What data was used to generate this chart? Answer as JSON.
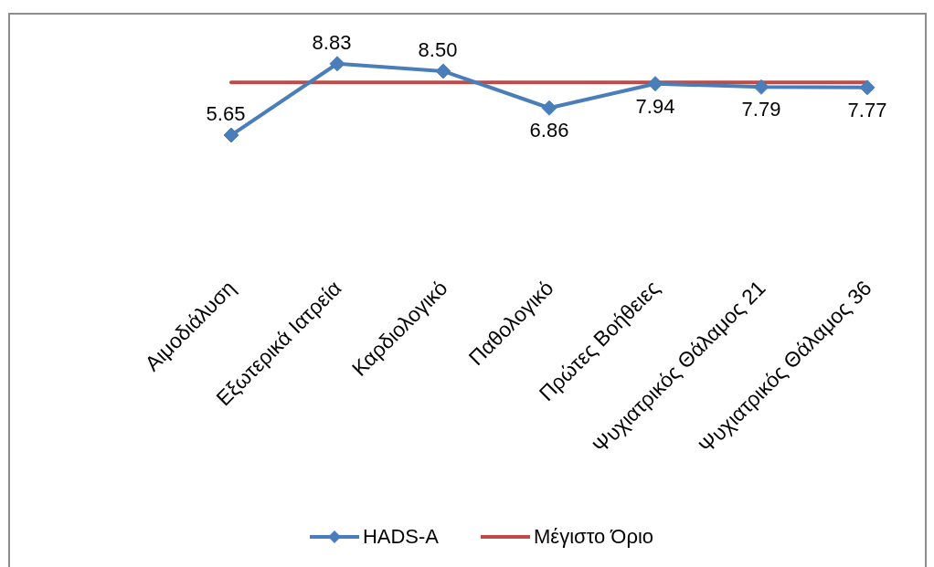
{
  "chart_data": {
    "type": "line",
    "categories": [
      "Αιμοδιάλυση",
      "Εξωτερικά Ιατρεία",
      "Καρδιολογικό",
      "Παθολογικό",
      "Πρώτες Βοήθειες",
      "Ψυχιατρικός Θάλαμος 21",
      "Ψυχιατρικός Θάλαμος 36"
    ],
    "series": [
      {
        "name": "HADS-A",
        "color": "#4a7ebb",
        "marker": "diamond",
        "values": [
          5.65,
          8.83,
          8.5,
          6.86,
          7.94,
          7.79,
          7.77
        ],
        "value_labels": [
          "5.65",
          "8.83",
          "8.50",
          "6.86",
          "7.94",
          "7.79",
          "7.77"
        ]
      },
      {
        "name": "Μέγιστο Όριο",
        "color": "#be4b48",
        "marker": "none",
        "values": [
          8,
          8,
          8,
          8,
          8,
          8,
          8
        ]
      }
    ],
    "tick_labels": "x",
    "legend": "bottom"
  }
}
